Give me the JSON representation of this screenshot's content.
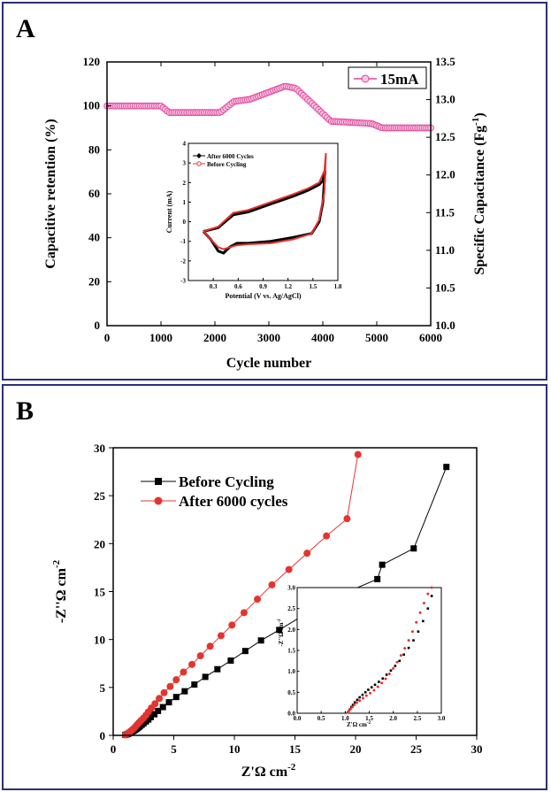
{
  "panels": {
    "a_label": "A",
    "b_label": "B"
  },
  "colors": {
    "border": "#2b2f7a",
    "magenta": "#e0439a",
    "red": "#e3342f",
    "black": "#000000"
  },
  "chart_data": [
    {
      "id": "A-main",
      "type": "scatter",
      "xlabel": "Cycle number",
      "ylabel": "Capacitive retention (%)",
      "y2label": "Specific Capacitance (Fg",
      "y2label_sup": "-1",
      "y2label_end": ")",
      "xlim": [
        0,
        6000
      ],
      "ylim": [
        0,
        120
      ],
      "y2lim": [
        10.0,
        13.5
      ],
      "xticks": [
        "0",
        "1000",
        "2000",
        "3000",
        "4000",
        "5000",
        "6000"
      ],
      "yticks": [
        "0",
        "20",
        "40",
        "60",
        "80",
        "100",
        "120"
      ],
      "y2ticks": [
        "10.0",
        "10.5",
        "11.0",
        "11.5",
        "12.0",
        "12.5",
        "13.0",
        "13.5"
      ],
      "legend_position": "top-right",
      "series": [
        {
          "name": "15mA",
          "marker": "circle",
          "color": "#e0439a",
          "keypoints": [
            [
              0,
              100
            ],
            [
              1000,
              100
            ],
            [
              1150,
              97
            ],
            [
              2100,
              97
            ],
            [
              2350,
              102
            ],
            [
              2650,
              103
            ],
            [
              3300,
              109
            ],
            [
              3500,
              108
            ],
            [
              4150,
              93
            ],
            [
              4900,
              92
            ],
            [
              5100,
              90
            ],
            [
              6000,
              90
            ]
          ]
        }
      ]
    },
    {
      "id": "A-inset",
      "type": "line",
      "xlabel": "Potential (V vs. Ag/AgCl)",
      "ylabel": "Current (mA)",
      "xlim": [
        -0.2,
        1.8
      ],
      "ylim": [
        -3,
        4
      ],
      "xticks": [
        "0.0",
        "0.3",
        "0.6",
        "0.9",
        "1.2",
        "1.5",
        "1.8"
      ],
      "yticks": [
        "-3",
        "-2",
        "-1",
        "0",
        "1",
        "2",
        "3",
        "4"
      ],
      "legend_position": "top-left",
      "series": [
        {
          "name": "After 6000 Cycles",
          "color": "#000000",
          "upper": [
            [
              0.0,
              -0.5
            ],
            [
              0.2,
              -0.3
            ],
            [
              0.4,
              0.35
            ],
            [
              0.6,
              0.5
            ],
            [
              0.9,
              0.9
            ],
            [
              1.2,
              1.3
            ],
            [
              1.4,
              1.6
            ],
            [
              1.55,
              1.9
            ],
            [
              1.6,
              2.1
            ],
            [
              1.63,
              2.6
            ]
          ],
          "lower": [
            [
              1.63,
              2.6
            ],
            [
              1.6,
              1.0
            ],
            [
              1.55,
              0.0
            ],
            [
              1.45,
              -0.6
            ],
            [
              1.2,
              -0.8
            ],
            [
              0.9,
              -1.0
            ],
            [
              0.6,
              -1.1
            ],
            [
              0.45,
              -1.1
            ],
            [
              0.35,
              -1.3
            ],
            [
              0.27,
              -1.6
            ],
            [
              0.2,
              -1.5
            ],
            [
              0.1,
              -0.9
            ],
            [
              0.0,
              -0.5
            ]
          ]
        },
        {
          "name": "Before Cycling",
          "color": "#e3342f",
          "upper": [
            [
              0.0,
              -0.5
            ],
            [
              0.2,
              -0.25
            ],
            [
              0.4,
              0.45
            ],
            [
              0.6,
              0.6
            ],
            [
              0.9,
              1.0
            ],
            [
              1.2,
              1.4
            ],
            [
              1.4,
              1.7
            ],
            [
              1.55,
              2.0
            ],
            [
              1.62,
              2.6
            ],
            [
              1.64,
              3.5
            ]
          ],
          "lower": [
            [
              1.64,
              3.5
            ],
            [
              1.62,
              1.5
            ],
            [
              1.55,
              0.1
            ],
            [
              1.45,
              -0.6
            ],
            [
              1.2,
              -0.9
            ],
            [
              0.9,
              -1.1
            ],
            [
              0.6,
              -1.15
            ],
            [
              0.45,
              -1.2
            ],
            [
              0.35,
              -1.3
            ],
            [
              0.27,
              -1.4
            ],
            [
              0.2,
              -1.3
            ],
            [
              0.1,
              -0.9
            ],
            [
              0.0,
              -0.5
            ]
          ]
        }
      ]
    },
    {
      "id": "B-main",
      "type": "line",
      "xlabel": "Z'Ω cm",
      "xlabel_sup": "-2",
      "ylabel": "-Z''Ω cm",
      "ylabel_sup": "-2",
      "xlim": [
        0,
        30
      ],
      "ylim": [
        0,
        30
      ],
      "xticks": [
        "0",
        "5",
        "10",
        "15",
        "20",
        "25",
        "30"
      ],
      "yticks": [
        "0",
        "5",
        "10",
        "15",
        "20",
        "25",
        "30"
      ],
      "legend_position": "top-left",
      "series": [
        {
          "name": "Before Cycling",
          "marker": "square",
          "color": "#000000",
          "x": [
            1.0,
            1.1,
            1.2,
            1.3,
            1.4,
            1.5,
            1.6,
            1.7,
            1.8,
            1.9,
            2.0,
            2.1,
            2.2,
            2.35,
            2.5,
            2.7,
            2.9,
            3.1,
            3.4,
            3.7,
            4.1,
            4.6,
            5.2,
            5.9,
            6.7,
            7.6,
            8.6,
            9.7,
            10.9,
            12.2,
            13.7,
            15.4,
            17.2,
            19.4,
            21.8,
            22.2,
            24.8,
            27.5
          ],
          "y": [
            0.05,
            0.1,
            0.15,
            0.2,
            0.28,
            0.35,
            0.42,
            0.5,
            0.58,
            0.66,
            0.75,
            0.85,
            0.95,
            1.1,
            1.25,
            1.45,
            1.65,
            1.9,
            2.2,
            2.55,
            2.95,
            3.45,
            4.0,
            4.6,
            5.3,
            6.1,
            6.9,
            7.8,
            8.8,
            9.9,
            11.0,
            12.3,
            13.6,
            15.0,
            16.3,
            17.8,
            19.5,
            28.0
          ]
        },
        {
          "name": "After 6000 cycles",
          "marker": "circle",
          "color": "#e3342f",
          "x": [
            1.0,
            1.1,
            1.2,
            1.3,
            1.4,
            1.5,
            1.6,
            1.7,
            1.8,
            1.9,
            2.0,
            2.15,
            2.3,
            2.5,
            2.7,
            2.9,
            3.15,
            3.45,
            3.8,
            4.2,
            4.7,
            5.2,
            5.8,
            6.5,
            7.2,
            8.0,
            8.9,
            9.8,
            10.8,
            11.9,
            13.1,
            14.5,
            16.0,
            17.6,
            19.3,
            20.2
          ],
          "y": [
            0.05,
            0.12,
            0.2,
            0.3,
            0.4,
            0.5,
            0.6,
            0.72,
            0.85,
            1.0,
            1.15,
            1.35,
            1.55,
            1.8,
            2.1,
            2.45,
            2.85,
            3.3,
            3.85,
            4.45,
            5.1,
            5.8,
            6.6,
            7.4,
            8.3,
            9.3,
            10.4,
            11.5,
            12.8,
            14.2,
            15.7,
            17.3,
            19.0,
            20.8,
            22.6,
            29.3
          ]
        }
      ]
    },
    {
      "id": "B-inset",
      "type": "scatter",
      "xlabel": "Z'Ω cm",
      "xlabel_sup": "-2",
      "ylabel": "-Z''Ω cm",
      "ylabel_sup": "-2",
      "xlim": [
        0.0,
        3.0
      ],
      "ylim": [
        0.0,
        3.0
      ],
      "xticks": [
        "0.0",
        "0.5",
        "1.0",
        "1.5",
        "2.0",
        "2.5",
        "3.0"
      ],
      "yticks": [
        "0.0",
        "0.5",
        "1.0",
        "1.5",
        "2.0",
        "2.5",
        "3.0"
      ],
      "series": [
        {
          "name": "Before Cycling",
          "color": "#000000",
          "x": [
            1.05,
            1.08,
            1.1,
            1.13,
            1.16,
            1.2,
            1.25,
            1.3,
            1.36,
            1.42,
            1.48,
            1.55,
            1.62,
            1.7,
            1.78,
            1.86,
            1.95,
            2.04,
            2.13,
            2.22,
            2.32,
            2.42,
            2.52,
            2.62,
            2.72,
            2.8
          ],
          "y": [
            0.02,
            0.06,
            0.1,
            0.15,
            0.2,
            0.26,
            0.32,
            0.38,
            0.44,
            0.5,
            0.56,
            0.62,
            0.68,
            0.75,
            0.83,
            0.92,
            1.02,
            1.13,
            1.25,
            1.4,
            1.56,
            1.74,
            1.95,
            2.2,
            2.5,
            2.8
          ]
        },
        {
          "name": "After 6000 cycles",
          "color": "#e3342f",
          "x": [
            1.05,
            1.08,
            1.11,
            1.15,
            1.19,
            1.24,
            1.3,
            1.37,
            1.44,
            1.52,
            1.6,
            1.68,
            1.76,
            1.84,
            1.92,
            2.0,
            2.08,
            2.16,
            2.24,
            2.32,
            2.4,
            2.48,
            2.56,
            2.64,
            2.72,
            2.8
          ],
          "y": [
            0.02,
            0.06,
            0.1,
            0.15,
            0.2,
            0.25,
            0.3,
            0.36,
            0.42,
            0.48,
            0.55,
            0.63,
            0.72,
            0.82,
            0.94,
            1.07,
            1.22,
            1.38,
            1.55,
            1.74,
            1.95,
            2.17,
            2.4,
            2.63,
            2.85,
            3.0
          ]
        }
      ]
    }
  ]
}
